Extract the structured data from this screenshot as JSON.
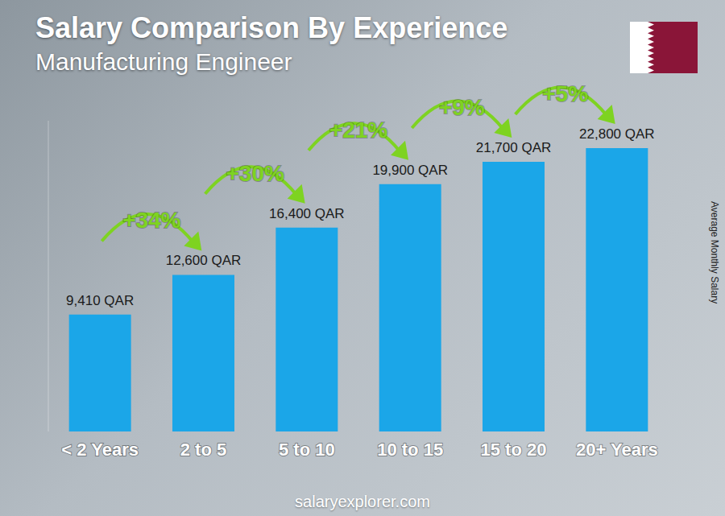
{
  "chart_data": {
    "type": "bar",
    "title": "Salary Comparison By Experience",
    "subtitle": "Manufacturing Engineer",
    "categories": [
      "< 2 Years",
      "2 to 5",
      "5 to 10",
      "10 to 15",
      "15 to 20",
      "20+ Years"
    ],
    "values": [
      9410,
      12600,
      16400,
      19900,
      21700,
      22800
    ],
    "value_labels": [
      "9,410 QAR",
      "12,600 QAR",
      "16,400 QAR",
      "19,900 QAR",
      "21,700 QAR",
      "22,800 QAR"
    ],
    "data_labels": true,
    "color": "#1ba6e8",
    "ylim": [
      0,
      25000
    ],
    "y_label": "Average Monthly Salary",
    "annotations": [
      "+34%",
      "+30%",
      "+21%",
      "+9%",
      "+5%"
    ],
    "tick_labels": "x",
    "grid": false,
    "source": "salaryexplorer.com"
  }
}
